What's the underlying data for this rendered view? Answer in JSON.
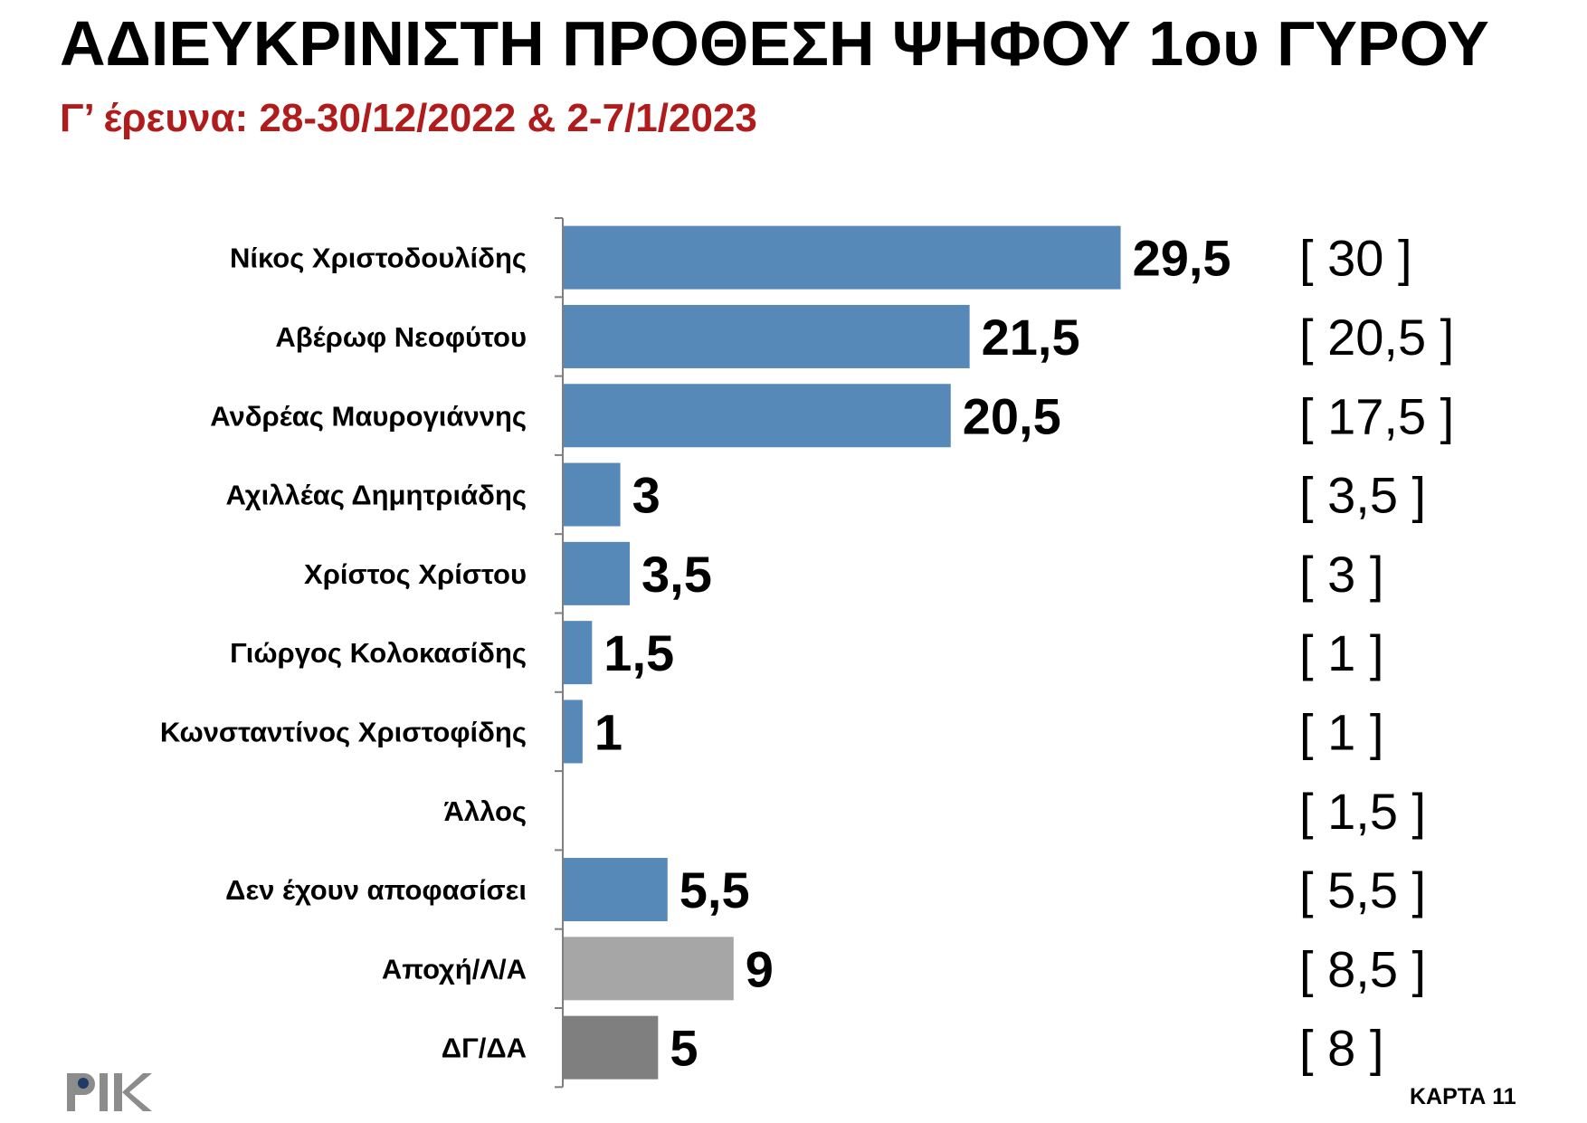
{
  "title": "ΑΔΙΕΥΚΡΙΝΙΣΤΗ ΠΡΟΘΕΣΗ ΨΗΦΟΥ 1ου ΓΥΡΟΥ",
  "subtitle": "Γ’ έρευνα: 28-30/12/2022 & 2-7/1/2023",
  "footer": {
    "code": "ΚΑΡΤΑ 11"
  },
  "logo": {
    "text": "ΡΙΚ",
    "icon": "rik-logo-icon"
  },
  "colors": {
    "blue": "#5689b7",
    "light_gray": "#a6a6a6",
    "dark_gray": "#7f7f7f",
    "subtitle": "#b01c1c"
  },
  "chart_data": {
    "type": "bar",
    "orientation": "horizontal",
    "title": "ΑΔΙΕΥΚΡΙΝΙΣΤΗ ΠΡΟΘΕΣΗ ΨΗΦΟΥ 1ου ΓΥΡΟΥ",
    "subtitle": "Γ’ έρευνα: 28-30/12/2022 & 2-7/1/2023",
    "xlim": [
      0,
      30
    ],
    "grid": false,
    "legend": "none",
    "categories": [
      "Νίκος Χριστοδουλίδης",
      "Αβέρωφ Νεοφύτου",
      "Ανδρέας Μαυρογιάννης",
      "Αχιλλέας Δημητριάδης",
      "Χρίστος Χρίστου",
      "Γιώργος Κολοκασίδης",
      "Κωνσταντίνος Χριστοφίδης",
      "Άλλος",
      "Δεν έχουν αποφασίσει",
      "Αποχή/Λ/Α",
      "ΔΓ/ΔΑ"
    ],
    "values": [
      29.5,
      21.5,
      20.5,
      3,
      3.5,
      1.5,
      1,
      null,
      5.5,
      9,
      5
    ],
    "value_labels": [
      "29,5",
      "21,5",
      "20,5",
      "3",
      "3,5",
      "1,5",
      "1",
      "",
      "5,5",
      "9",
      "5"
    ],
    "previous_labels": [
      "[ 30 ]",
      "[ 20,5 ]",
      "[ 17,5 ]",
      "[ 3,5 ]",
      "[ 3 ]",
      "[ 1 ]",
      "[ 1 ]",
      "[ 1,5 ]",
      "[ 5,5 ]",
      "[ 8,5 ]",
      "[ 8 ]"
    ],
    "bar_colors": [
      "#5689b7",
      "#5689b7",
      "#5689b7",
      "#5689b7",
      "#5689b7",
      "#5689b7",
      "#5689b7",
      "#5689b7",
      "#5689b7",
      "#a6a6a6",
      "#7f7f7f"
    ]
  }
}
